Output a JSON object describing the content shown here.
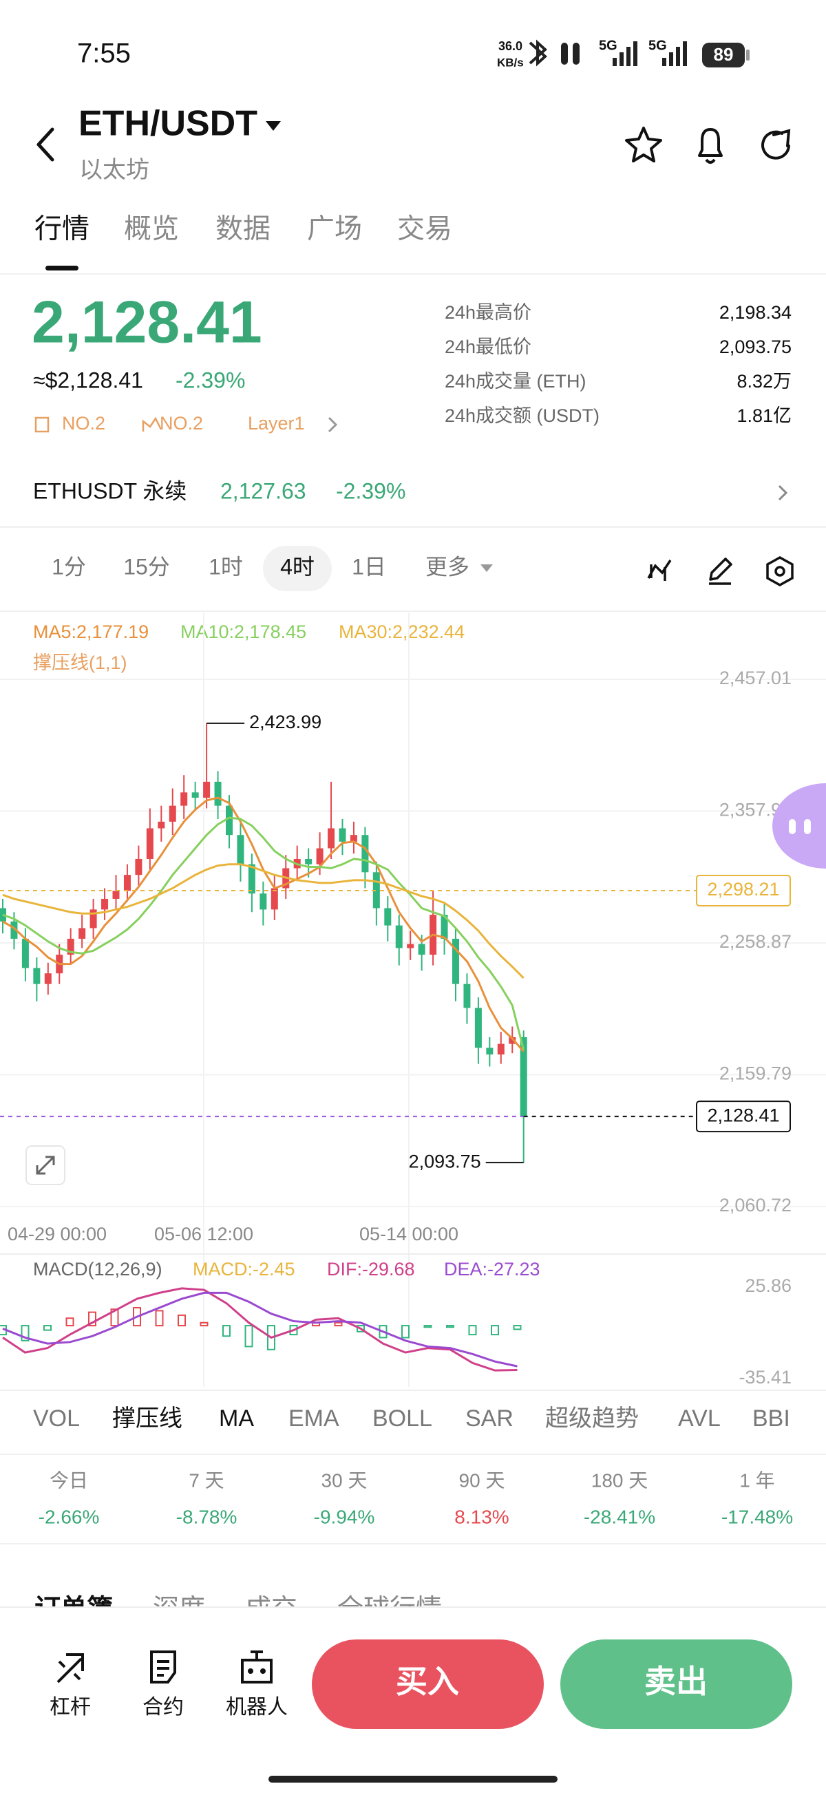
{
  "status_bar": {
    "time": "7:55",
    "net_speed": "36.0",
    "net_unit": "KB/s",
    "signal_1": "5G",
    "signal_2": "5G",
    "battery": "89"
  },
  "header": {
    "pair": "ETH/USDT",
    "name": "以太坊"
  },
  "tabs": [
    "行情",
    "概览",
    "数据",
    "广场",
    "交易"
  ],
  "price": {
    "last": "2,128.41",
    "usd": "≈$2,128.41",
    "change": "-2.39%",
    "tags": [
      "NO.2",
      "NO.2",
      "Layer1"
    ]
  },
  "stats": [
    {
      "label": "24h最高价",
      "value": "2,198.34"
    },
    {
      "label": "24h最低价",
      "value": "2,093.75"
    },
    {
      "label": "24h成交量 (ETH)",
      "value": "8.32万"
    },
    {
      "label": "24h成交额 (USDT)",
      "value": "1.81亿"
    }
  ],
  "perpetual": {
    "name": "ETHUSDT 永续",
    "price": "2,127.63",
    "change": "-2.39%"
  },
  "intervals": [
    "1分",
    "15分",
    "1时",
    "4时",
    "1日",
    "更多"
  ],
  "chart_data": [
    {
      "type": "candlestick",
      "sublabel": "撑压线(1,1)",
      "ylim": [
        2054.5,
        2507.2
      ],
      "yticks": [
        {
          "value": 2457.01,
          "label": "2,457.01"
        },
        {
          "value": 2357.94,
          "label": "2,357.94"
        },
        {
          "value": 2258.87,
          "label": "2,258.87"
        },
        {
          "value": 2159.79,
          "label": "2,159.79"
        },
        {
          "value": 2060.72,
          "label": "2,060.72"
        }
      ],
      "xticks": [
        "04-29 00:00",
        "05-06 12:00",
        "05-14 00:00"
      ],
      "grid": true,
      "up_color": "#e5484d",
      "down_color": "#2fb57d",
      "candles": [
        [
          2285,
          2292,
          2266,
          2275
        ],
        [
          2275,
          2282,
          2254,
          2262
        ],
        [
          2262,
          2270,
          2230,
          2240
        ],
        [
          2240,
          2248,
          2215,
          2228
        ],
        [
          2228,
          2244,
          2220,
          2236
        ],
        [
          2236,
          2258,
          2228,
          2250
        ],
        [
          2250,
          2270,
          2243,
          2262
        ],
        [
          2262,
          2280,
          2255,
          2270
        ],
        [
          2270,
          2292,
          2262,
          2284
        ],
        [
          2284,
          2300,
          2276,
          2292
        ],
        [
          2292,
          2310,
          2284,
          2298
        ],
        [
          2298,
          2318,
          2290,
          2310
        ],
        [
          2310,
          2332,
          2302,
          2322
        ],
        [
          2322,
          2360,
          2314,
          2345
        ],
        [
          2345,
          2362,
          2335,
          2350
        ],
        [
          2350,
          2375,
          2340,
          2362
        ],
        [
          2362,
          2385,
          2352,
          2372
        ],
        [
          2372,
          2380,
          2358,
          2368
        ],
        [
          2368,
          2423.99,
          2360,
          2380
        ],
        [
          2380,
          2388,
          2352,
          2362
        ],
        [
          2362,
          2370,
          2330,
          2340
        ],
        [
          2340,
          2350,
          2305,
          2318
        ],
        [
          2318,
          2326,
          2282,
          2296
        ],
        [
          2296,
          2305,
          2272,
          2284
        ],
        [
          2284,
          2310,
          2276,
          2300
        ],
        [
          2300,
          2325,
          2292,
          2315
        ],
        [
          2315,
          2332,
          2306,
          2322
        ],
        [
          2322,
          2330,
          2308,
          2318
        ],
        [
          2318,
          2342,
          2310,
          2330
        ],
        [
          2330,
          2380,
          2322,
          2345
        ],
        [
          2345,
          2352,
          2325,
          2335
        ],
        [
          2335,
          2350,
          2326,
          2340
        ],
        [
          2340,
          2346,
          2300,
          2312
        ],
        [
          2312,
          2320,
          2272,
          2285
        ],
        [
          2285,
          2294,
          2260,
          2272
        ],
        [
          2272,
          2280,
          2242,
          2255
        ],
        [
          2255,
          2268,
          2246,
          2258
        ],
        [
          2258,
          2265,
          2238,
          2250
        ],
        [
          2250,
          2298,
          2242,
          2280
        ],
        [
          2280,
          2288,
          2250,
          2262
        ],
        [
          2262,
          2270,
          2215,
          2228
        ],
        [
          2228,
          2236,
          2198,
          2210
        ],
        [
          2210,
          2218,
          2168,
          2180
        ],
        [
          2180,
          2188,
          2166,
          2175
        ],
        [
          2175,
          2192,
          2168,
          2183
        ],
        [
          2183,
          2196,
          2176,
          2188
        ],
        [
          2188,
          2193,
          2093.75,
          2128.41
        ]
      ],
      "series": [
        {
          "legend": "MA5:2,177.19",
          "color": "#e8903a",
          "values": [
            2275,
            2270,
            2262,
            2256,
            2248,
            2243,
            2243,
            2249,
            2260,
            2272,
            2281,
            2291,
            2301,
            2313,
            2325,
            2338,
            2350,
            2359,
            2366,
            2368,
            2364,
            2350,
            2333,
            2314,
            2300,
            2303,
            2307,
            2311,
            2316,
            2326,
            2334,
            2335,
            2330,
            2318,
            2300,
            2282,
            2270,
            2260,
            2265,
            2263,
            2254,
            2245,
            2230,
            2210,
            2195,
            2187,
            2177.19
          ]
        },
        {
          "legend": "MA10:2,178.45",
          "color": "#86d05e",
          "values": [
            2280,
            2277,
            2272,
            2266,
            2260,
            2255,
            2252,
            2251,
            2253,
            2258,
            2263,
            2269,
            2277,
            2287,
            2298,
            2310,
            2320,
            2330,
            2340,
            2348,
            2353,
            2352,
            2347,
            2338,
            2328,
            2322,
            2318,
            2316,
            2316,
            2315,
            2318,
            2322,
            2321,
            2318,
            2314,
            2304,
            2295,
            2285,
            2282,
            2279,
            2270,
            2260,
            2248,
            2238,
            2226,
            2212,
            2178.45
          ]
        },
        {
          "legend": "MA30:2,232.44",
          "color": "#e8b43a",
          "values": [
            2295,
            2292,
            2290,
            2288,
            2286,
            2284,
            2282,
            2281,
            2281,
            2282,
            2284,
            2286,
            2289,
            2292,
            2296,
            2300,
            2305,
            2310,
            2314,
            2317,
            2318,
            2318,
            2316,
            2313,
            2310,
            2308,
            2306,
            2305,
            2304,
            2304,
            2305,
            2306,
            2306,
            2305,
            2303,
            2300,
            2297,
            2294,
            2292,
            2289,
            2283,
            2276,
            2268,
            2258,
            2249,
            2241,
            2232.44
          ]
        }
      ],
      "price_lines": [
        {
          "value": 2298.21,
          "label": "2,298.21",
          "color": "#e8b43a"
        },
        {
          "value": 2128.41,
          "label": "2,128.41",
          "color": "#9a5ae0"
        }
      ],
      "annotations": [
        {
          "value": 2423.99,
          "label": "2,423.99"
        },
        {
          "value": 2093.75,
          "label": "2,093.75"
        }
      ]
    },
    {
      "type": "macd",
      "title": "MACD(12,26,9)",
      "ylim": [
        -41,
        42
      ],
      "yticks": [
        25.86,
        -35.41
      ],
      "up_color": "#e5484d",
      "down_color": "#2fb57d",
      "series": [
        {
          "legend": "MACD:-2.45",
          "color": "#e8b43a",
          "values": [
            -6,
            -10,
            -3,
            5,
            9,
            11,
            12,
            10,
            7,
            2,
            -7,
            -14,
            -16,
            -6,
            2,
            2,
            -4,
            -8,
            -8,
            -1,
            -1,
            -6,
            -6,
            -2.45
          ]
        },
        {
          "legend": "DIF:-29.68",
          "color": "#d0408a",
          "values": [
            -8,
            -18,
            -15,
            -6,
            2,
            10,
            18,
            22,
            25,
            24,
            15,
            2,
            -8,
            -3,
            4,
            5,
            -2,
            -12,
            -18,
            -15,
            -16,
            -25,
            -30,
            -29.68
          ]
        },
        {
          "legend": "DEA:-27.23",
          "color": "#9a4ad0",
          "values": [
            -2,
            -8,
            -12,
            -11,
            -7,
            -1,
            6,
            12,
            18,
            22,
            22,
            16,
            8,
            3,
            2,
            3,
            2,
            -4,
            -10,
            -14,
            -15,
            -19,
            -24,
            -27.23
          ]
        }
      ]
    }
  ],
  "indicators": [
    "VOL",
    "撑压线",
    "MA",
    "EMA",
    "BOLL",
    "SAR",
    "超级趋势",
    "AVL",
    "BBI"
  ],
  "periods": [
    {
      "label": "今日",
      "change": "-2.66%"
    },
    {
      "label": "7 天",
      "change": "-8.78%"
    },
    {
      "label": "30 天",
      "change": "-9.94%"
    },
    {
      "label": "90 天",
      "change": "8.13%"
    },
    {
      "label": "180 天",
      "change": "-28.41%"
    },
    {
      "label": "1 年",
      "change": "-17.48%"
    }
  ],
  "section_tabs": [
    "订单簿",
    "深度",
    "成交",
    "全球行情"
  ],
  "bottom_bar": {
    "tools": [
      "杠杆",
      "合约",
      "机器人"
    ],
    "buy": "买入",
    "sell": "卖出"
  }
}
